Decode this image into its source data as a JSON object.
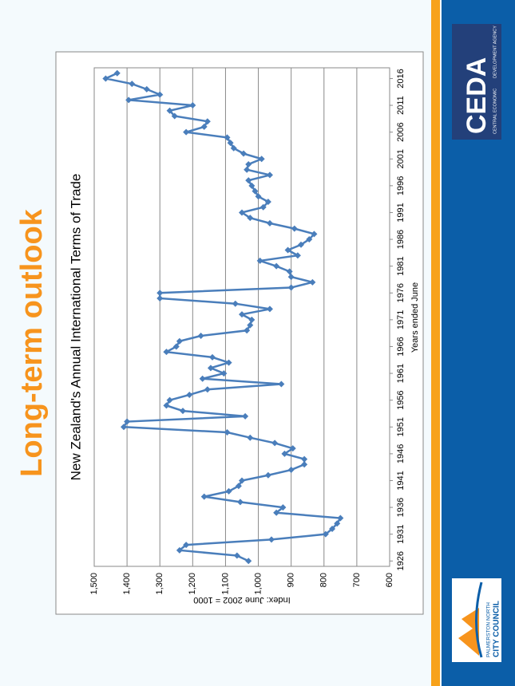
{
  "slide": {
    "title": "Long-term outlook",
    "logo_left": [
      "PALMERSTON NORTH",
      "CITY COUNCIL"
    ],
    "logo_right": {
      "name": "CEDA",
      "tagline": [
        "CENTRAL ECONOMIC",
        "DEVELOPMENT AGENCY"
      ]
    }
  },
  "chart_data": {
    "type": "line",
    "title": "New Zealand's Annual International Terms of Trade",
    "x_label": "Years ended June",
    "y_label": "Index: June 2002 = 1000",
    "x": [
      1926,
      1927,
      1928,
      1929,
      1930,
      1931,
      1932,
      1933,
      1934,
      1935,
      1936,
      1937,
      1938,
      1939,
      1940,
      1941,
      1942,
      1943,
      1944,
      1945,
      1946,
      1947,
      1948,
      1949,
      1950,
      1951,
      1952,
      1953,
      1954,
      1955,
      1956,
      1957,
      1958,
      1959,
      1960,
      1961,
      1962,
      1963,
      1964,
      1965,
      1966,
      1967,
      1968,
      1969,
      1970,
      1971,
      1972,
      1973,
      1974,
      1975,
      1976,
      1977,
      1978,
      1979,
      1980,
      1981,
      1982,
      1983,
      1984,
      1985,
      1986,
      1987,
      1988,
      1989,
      1990,
      1991,
      1992,
      1993,
      1994,
      1995,
      1996,
      1997,
      1998,
      1999,
      2000,
      2001,
      2002,
      2003,
      2004,
      2005,
      2006,
      2007,
      2008,
      2009,
      2010,
      2011,
      2012,
      2013,
      2014,
      2015,
      2016,
      2017
    ],
    "series": [
      {
        "name": "Terms of Trade",
        "color": "#4a7ebb",
        "values": [
          1030,
          1065,
          1240,
          1220,
          960,
          795,
          775,
          760,
          750,
          945,
          925,
          1055,
          1165,
          1090,
          1060,
          1050,
          970,
          900,
          860,
          860,
          920,
          895,
          950,
          1025,
          1095,
          1410,
          1400,
          1040,
          1230,
          1280,
          1270,
          1210,
          1155,
          930,
          1170,
          1105,
          1145,
          1090,
          1140,
          1280,
          1250,
          1240,
          1175,
          1035,
          1025,
          1020,
          1050,
          965,
          1070,
          1300,
          1300,
          900,
          835,
          900,
          905,
          945,
          995,
          880,
          910,
          870,
          845,
          830,
          890,
          965,
          1025,
          1050,
          985,
          970,
          1000,
          1010,
          1020,
          1030,
          965,
          1035,
          1030,
          990,
          1045,
          1075,
          1085,
          1095,
          1220,
          1165,
          1155,
          1255,
          1270,
          1200,
          1395,
          1300,
          1340,
          1385,
          1465,
          1430
        ]
      }
    ],
    "xlim": [
      1925,
      2018
    ],
    "xticks": [
      1926,
      1931,
      1936,
      1941,
      1946,
      1951,
      1956,
      1961,
      1966,
      1971,
      1976,
      1981,
      1986,
      1991,
      1996,
      2001,
      2006,
      2011,
      2016
    ],
    "ylim": [
      600,
      1500
    ],
    "yticks": [
      600,
      700,
      800,
      900,
      {
        "value": 1000,
        "label": "1,000"
      },
      {
        "value": 1100,
        "label": "1,100"
      },
      {
        "value": 1200,
        "label": "1,200"
      },
      {
        "value": 1300,
        "label": "1,300"
      },
      {
        "value": 1400,
        "label": "1,400"
      },
      {
        "value": 1500,
        "label": "1,500"
      }
    ],
    "grid": true
  }
}
